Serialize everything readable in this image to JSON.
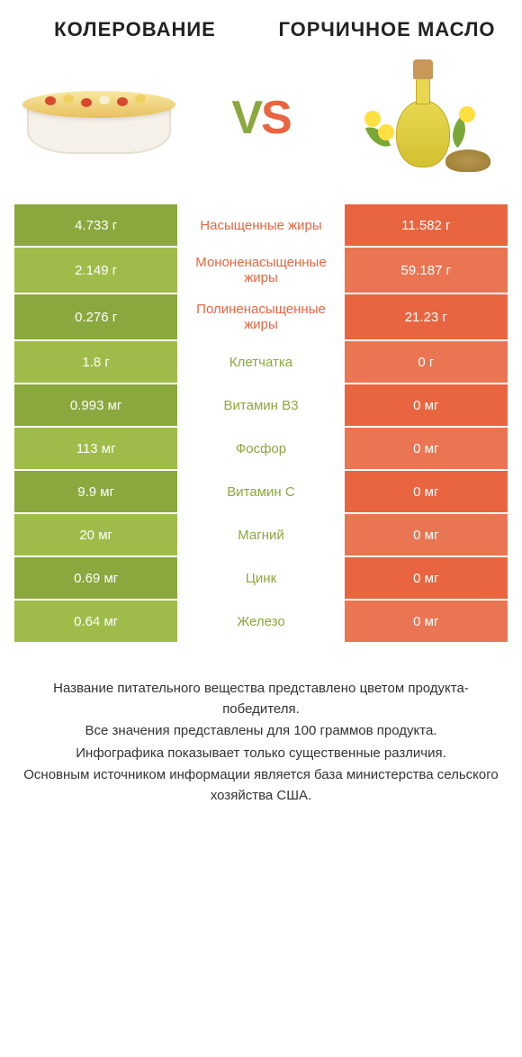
{
  "colors": {
    "green_dark": "#8aa83d",
    "green_light": "#9fbc4a",
    "orange_dark": "#e8653f",
    "orange_light": "#ea7552",
    "text_green": "#8aa83d",
    "text_orange": "#e8653f",
    "text_dark": "#333333",
    "white": "#ffffff"
  },
  "header": {
    "title_left": "Колерование",
    "title_right": "Горчичное масло",
    "vs_v": "V",
    "vs_s": "S"
  },
  "rows": [
    {
      "left": "4.733 г",
      "mid": "Насыщенные жиры",
      "right": "11.582 г",
      "winner": "right"
    },
    {
      "left": "2.149 г",
      "mid": "Мононенасыщенные жиры",
      "right": "59.187 г",
      "winner": "right"
    },
    {
      "left": "0.276 г",
      "mid": "Полиненасыщенные жиры",
      "right": "21.23 г",
      "winner": "right"
    },
    {
      "left": "1.8 г",
      "mid": "Клетчатка",
      "right": "0 г",
      "winner": "left"
    },
    {
      "left": "0.993 мг",
      "mid": "Витамин B3",
      "right": "0 мг",
      "winner": "left"
    },
    {
      "left": "113 мг",
      "mid": "Фосфор",
      "right": "0 мг",
      "winner": "left"
    },
    {
      "left": "9.9 мг",
      "mid": "Витамин C",
      "right": "0 мг",
      "winner": "left"
    },
    {
      "left": "20 мг",
      "mid": "Магний",
      "right": "0 мг",
      "winner": "left"
    },
    {
      "left": "0.69 мг",
      "mid": "Цинк",
      "right": "0 мг",
      "winner": "left"
    },
    {
      "left": "0.64 мг",
      "mid": "Железо",
      "right": "0 мг",
      "winner": "left"
    }
  ],
  "footer": {
    "line1": "Название питательного вещества представлено цветом продукта-победителя.",
    "line2": "Все значения представлены для 100 граммов продукта.",
    "line3": "Инфографика показывает только существенные различия.",
    "line4": "Основным источником информации является база министерства сельского хозяйства США."
  }
}
